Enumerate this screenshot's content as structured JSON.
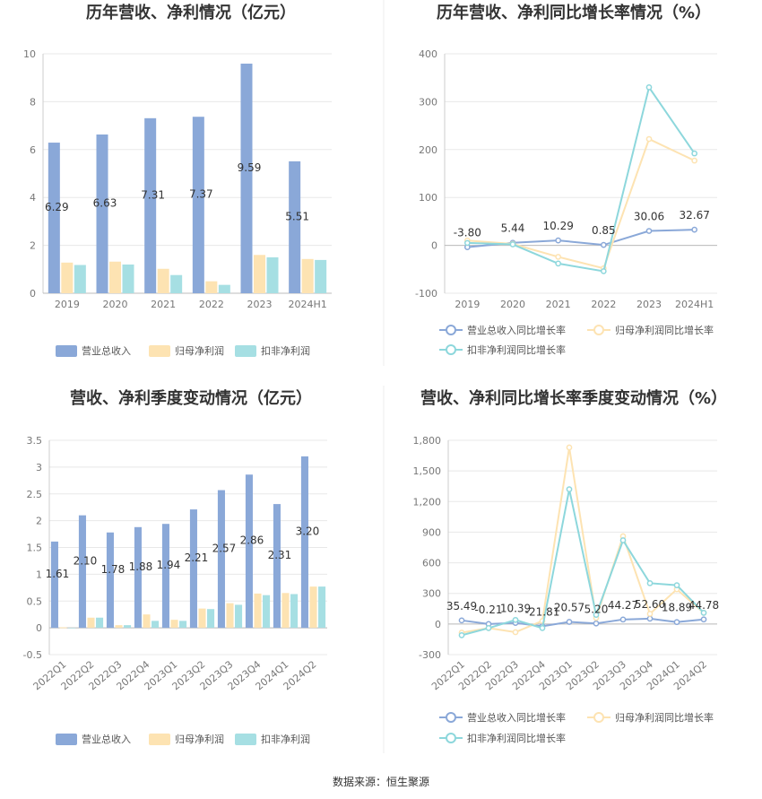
{
  "colors": {
    "revenue": "#8aa8d8",
    "parent_net": "#fde3b2",
    "deducted_net": "#a6dfe3",
    "rev_line": "#8aa8d8",
    "parent_line": "#fde3b2",
    "deducted_line": "#8dd7dc",
    "axis": "#cccccc",
    "grid": "#e8e8e8"
  },
  "source_note": "数据来源：恒生聚源",
  "chart_data": [
    {
      "id": "annual_amount",
      "type": "bar",
      "title": "历年营收、净利情况（亿元）",
      "categories": [
        "2019",
        "2020",
        "2021",
        "2022",
        "2023",
        "2024H1"
      ],
      "ylim": [
        0,
        10
      ],
      "yticks": [
        0,
        2,
        4,
        6,
        8,
        10
      ],
      "ytick_labels": [
        "0",
        "2",
        "4",
        "6",
        "8",
        "10"
      ],
      "series": [
        {
          "name": "营业总收入",
          "values": [
            6.29,
            6.63,
            7.31,
            7.37,
            9.59,
            5.51
          ],
          "labels": [
            "6.29",
            "6.63",
            "7.31",
            "7.37",
            "9.59",
            "5.51"
          ]
        },
        {
          "name": "归母净利润",
          "values": [
            1.28,
            1.32,
            1.02,
            0.5,
            1.6,
            1.43
          ]
        },
        {
          "name": "扣非净利润",
          "values": [
            1.18,
            1.2,
            0.76,
            0.35,
            1.5,
            1.39
          ]
        }
      ],
      "legend": "bottom"
    },
    {
      "id": "annual_growth",
      "type": "line",
      "title": "历年营收、净利同比增长率情况（%）",
      "categories": [
        "2019",
        "2020",
        "2021",
        "2022",
        "2023",
        "2024H1"
      ],
      "ylim": [
        -100,
        400
      ],
      "yticks": [
        -100,
        0,
        100,
        200,
        300,
        400
      ],
      "ytick_labels": [
        "-100",
        "0",
        "100",
        "200",
        "300",
        "400"
      ],
      "series": [
        {
          "name": "营业总收入同比增长率",
          "values": [
            -3.8,
            5.44,
            10.29,
            0.85,
            30.06,
            32.67
          ],
          "labels": [
            "-3.80",
            "5.44",
            "10.29",
            "0.85",
            "30.06",
            "32.67"
          ]
        },
        {
          "name": "归母净利润同比增长率",
          "values": [
            10,
            3,
            -24,
            -48,
            222,
            177
          ]
        },
        {
          "name": "扣非净利润同比增长率",
          "values": [
            5,
            2,
            -38,
            -54,
            330,
            192
          ]
        }
      ],
      "legend": "bottom"
    },
    {
      "id": "quarterly_amount",
      "type": "bar",
      "title": "营收、净利季度变动情况（亿元）",
      "categories": [
        "2022Q1",
        "2022Q2",
        "2022Q3",
        "2022Q4",
        "2023Q1",
        "2023Q2",
        "2023Q3",
        "2023Q4",
        "2024Q1",
        "2024Q2"
      ],
      "ylim": [
        -0.5,
        3.5
      ],
      "yticks": [
        -0.5,
        0,
        0.5,
        1,
        1.5,
        2,
        2.5,
        3,
        3.5
      ],
      "ytick_labels": [
        "-0.5",
        "0",
        "0.5",
        "1",
        "1.5",
        "2",
        "2.5",
        "3",
        "3.5"
      ],
      "series": [
        {
          "name": "营业总收入",
          "values": [
            1.61,
            2.1,
            1.78,
            1.88,
            1.94,
            2.21,
            2.57,
            2.86,
            2.31,
            3.2
          ],
          "labels": [
            "1.61",
            "2.10",
            "1.78",
            "1.88",
            "1.94",
            "2.21",
            "2.57",
            "2.86",
            "2.31",
            "3.20"
          ]
        },
        {
          "name": "归母净利润",
          "values": [
            0.01,
            0.19,
            0.05,
            0.25,
            0.15,
            0.36,
            0.46,
            0.64,
            0.65,
            0.77
          ]
        },
        {
          "name": "扣非净利润",
          "values": [
            0.0,
            0.19,
            0.05,
            0.13,
            0.13,
            0.35,
            0.43,
            0.61,
            0.63,
            0.77
          ]
        }
      ],
      "legend": "bottom"
    },
    {
      "id": "quarterly_growth",
      "type": "line",
      "title": "营收、净利同比增长率季度变动情况（%）",
      "categories": [
        "2022Q1",
        "2022Q2",
        "2022Q3",
        "2022Q4",
        "2023Q1",
        "2023Q2",
        "2023Q3",
        "2023Q4",
        "2024Q1",
        "2024Q2"
      ],
      "ylim": [
        -300,
        1800
      ],
      "yticks": [
        -300,
        0,
        300,
        600,
        900,
        1200,
        1500,
        1800
      ],
      "ytick_labels": [
        "-300",
        "0",
        "300",
        "600",
        "900",
        "1,200",
        "1,500",
        "1,800"
      ],
      "series": [
        {
          "name": "营业总收入同比增长率",
          "values": [
            35.49,
            -0.21,
            10.39,
            -21.81,
            20.57,
            5.2,
            44.27,
            52.6,
            18.89,
            44.78
          ],
          "labels": [
            "35.49",
            "-0.21",
            "10.39",
            "-21.81",
            "20.57",
            "5.20",
            "44.27",
            "52.60",
            "18.89",
            "44.78"
          ]
        },
        {
          "name": "归母净利润同比增长率",
          "values": [
            -85,
            -40,
            -80,
            30,
            1730,
            60,
            860,
            100,
            340,
            110
          ]
        },
        {
          "name": "扣非净利润同比增长率",
          "values": [
            -110,
            -40,
            40,
            -40,
            1320,
            90,
            820,
            400,
            380,
            110
          ]
        }
      ],
      "legend": "bottom"
    }
  ]
}
